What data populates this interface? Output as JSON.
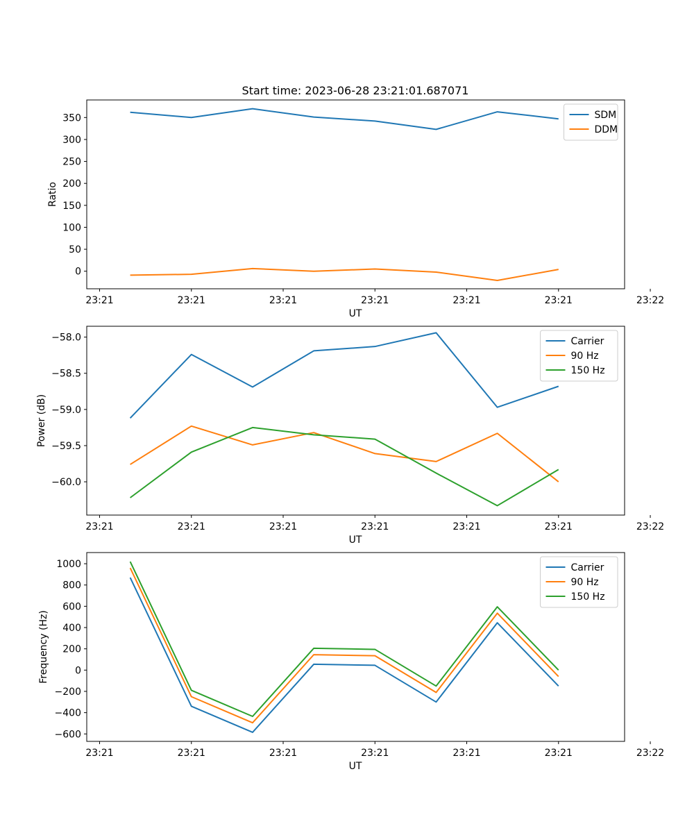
{
  "chart_data": [
    {
      "type": "line",
      "title": "Start time: 2023-06-28 23:21:01.687071",
      "xlabel": "UT",
      "ylabel": "Ratio",
      "x": [
        1,
        2,
        3,
        4,
        5,
        6,
        7,
        8
      ],
      "xlim": [
        0.29,
        9.08
      ],
      "x_ticks": [
        0.5,
        2.0,
        3.5,
        5.0,
        6.5,
        8.0,
        9.5
      ],
      "x_tick_labels": [
        "23:21",
        "23:21",
        "23:21",
        "23:21",
        "23:21",
        "23:21",
        "23:22"
      ],
      "ylim": [
        -40,
        390
      ],
      "y_ticks": [
        0,
        50,
        100,
        150,
        200,
        250,
        300,
        350
      ],
      "y_tick_labels": [
        "0",
        "50",
        "100",
        "150",
        "200",
        "250",
        "300",
        "350"
      ],
      "legend_position": "top-right",
      "series": [
        {
          "name": "SDM",
          "color": "#1f77b4",
          "values": [
            362,
            350,
            370,
            351,
            342,
            323,
            363,
            347
          ]
        },
        {
          "name": "DDM",
          "color": "#ff7f0e",
          "values": [
            -9,
            -7,
            6,
            0,
            5,
            -2,
            -21,
            4
          ]
        }
      ]
    },
    {
      "type": "line",
      "xlabel": "UT",
      "ylabel": "Power (dB)",
      "x": [
        1,
        2,
        3,
        4,
        5,
        6,
        7,
        8
      ],
      "xlim": [
        0.29,
        9.08
      ],
      "x_ticks": [
        0.5,
        2.0,
        3.5,
        5.0,
        6.5,
        8.0,
        9.5
      ],
      "x_tick_labels": [
        "23:21",
        "23:21",
        "23:21",
        "23:21",
        "23:21",
        "23:21",
        "23:22"
      ],
      "ylim": [
        -60.46,
        -57.85
      ],
      "y_ticks": [
        -60.0,
        -59.5,
        -59.0,
        -58.5,
        -58.0
      ],
      "y_tick_labels": [
        "−60.0",
        "−59.5",
        "−59.0",
        "−58.5",
        "−58.0"
      ],
      "legend_position": "top-right",
      "series": [
        {
          "name": "Carrier",
          "color": "#1f77b4",
          "values": [
            -59.12,
            -58.24,
            -58.69,
            -58.19,
            -58.13,
            -57.94,
            -58.97,
            -58.68
          ]
        },
        {
          "name": "90 Hz",
          "color": "#ff7f0e",
          "values": [
            -59.76,
            -59.23,
            -59.49,
            -59.32,
            -59.61,
            -59.72,
            -59.33,
            -60.0
          ]
        },
        {
          "name": "150 Hz",
          "color": "#2ca02c",
          "values": [
            -60.22,
            -59.59,
            -59.25,
            -59.35,
            -59.41,
            -59.88,
            -60.33,
            -59.83
          ]
        }
      ]
    },
    {
      "type": "line",
      "xlabel": "UT",
      "ylabel": "Frequency (Hz)",
      "x": [
        1,
        2,
        3,
        4,
        5,
        6,
        7,
        8
      ],
      "xlim": [
        0.29,
        9.08
      ],
      "x_ticks": [
        0.5,
        2.0,
        3.5,
        5.0,
        6.5,
        8.0,
        9.5
      ],
      "x_tick_labels": [
        "23:21",
        "23:21",
        "23:21",
        "23:21",
        "23:21",
        "23:21",
        "23:22"
      ],
      "ylim": [
        -670,
        1105
      ],
      "y_ticks": [
        -600,
        -400,
        -200,
        0,
        200,
        400,
        600,
        800,
        1000
      ],
      "y_tick_labels": [
        "−600",
        "−400",
        "−200",
        "0",
        "200",
        "400",
        "600",
        "800",
        "1000"
      ],
      "legend_position": "top-right",
      "series": [
        {
          "name": "Carrier",
          "color": "#1f77b4",
          "values": [
            870,
            -340,
            -585,
            55,
            45,
            -300,
            445,
            -150
          ]
        },
        {
          "name": "90 Hz",
          "color": "#ff7f0e",
          "values": [
            960,
            -250,
            -495,
            145,
            135,
            -210,
            535,
            -60
          ]
        },
        {
          "name": "150 Hz",
          "color": "#2ca02c",
          "values": [
            1020,
            -190,
            -435,
            205,
            195,
            -150,
            595,
            0
          ]
        }
      ]
    }
  ]
}
